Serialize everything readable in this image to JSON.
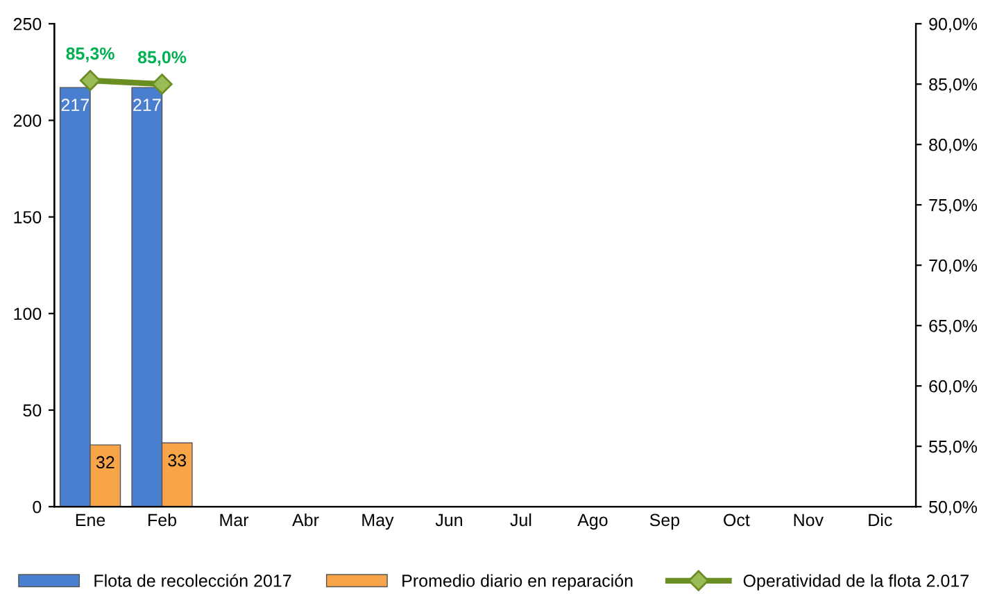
{
  "chart_data": {
    "type": "bar",
    "categories": [
      "Ene",
      "Feb",
      "Mar",
      "Abr",
      "May",
      "Jun",
      "Jul",
      "Ago",
      "Sep",
      "Oct",
      "Nov",
      "Dic"
    ],
    "series": [
      {
        "name": "Flota de recolección 2017",
        "color": "#4a7fd0",
        "values": [
          217,
          217,
          null,
          null,
          null,
          null,
          null,
          null,
          null,
          null,
          null,
          null
        ],
        "value_labels": [
          "217",
          "217",
          null,
          null,
          null,
          null,
          null,
          null,
          null,
          null,
          null,
          null
        ]
      },
      {
        "name": "Promedio diario en reparación",
        "color": "#f8a54a",
        "values": [
          32,
          33,
          null,
          null,
          null,
          null,
          null,
          null,
          null,
          null,
          null,
          null
        ],
        "value_labels": [
          "32",
          "33",
          null,
          null,
          null,
          null,
          null,
          null,
          null,
          null,
          null,
          null
        ]
      },
      {
        "name": "Operatividad de la flota 2.017",
        "type": "line",
        "axis": "y2",
        "color": "#6b8e23",
        "marker": "diamond",
        "values": [
          85.3,
          85.0,
          null,
          null,
          null,
          null,
          null,
          null,
          null,
          null,
          null,
          null
        ],
        "value_labels": [
          "85,3%",
          "85,0%",
          null,
          null,
          null,
          null,
          null,
          null,
          null,
          null,
          null,
          null
        ]
      }
    ],
    "ylim": [
      0,
      250
    ],
    "yticks": [
      0,
      50,
      100,
      150,
      200,
      250
    ],
    "y2lim": [
      50,
      90
    ],
    "y2ticks": [
      {
        "value": 50,
        "label": "50,0%"
      },
      {
        "value": 55,
        "label": "55,0%"
      },
      {
        "value": 60,
        "label": "60,0%"
      },
      {
        "value": 65,
        "label": "65,0%"
      },
      {
        "value": 70,
        "label": "70,0%"
      },
      {
        "value": 75,
        "label": "75,0%"
      },
      {
        "value": 80,
        "label": "80,0%"
      },
      {
        "value": 85,
        "label": "85,0%"
      },
      {
        "value": 90,
        "label": "90,0%"
      }
    ],
    "legend": "bottom",
    "grid": false
  }
}
